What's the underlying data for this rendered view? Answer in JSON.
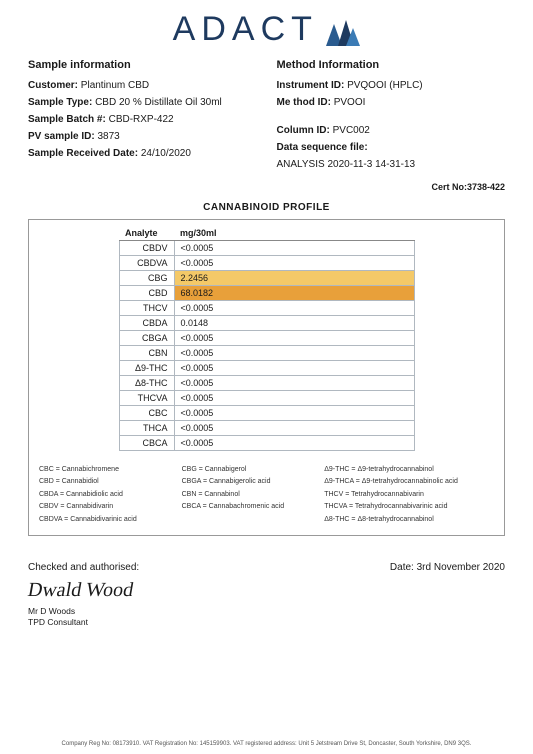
{
  "logo": {
    "text": "ADACT"
  },
  "sample": {
    "heading": "Sample information",
    "customer_label": "Customer:",
    "customer": "Plantinum CBD",
    "type_label": "Sample Type:",
    "type": "CBD 20 % Distillate Oil 30ml",
    "batch_label": "Sample Batch #:",
    "batch": "CBD-RXP-422",
    "pv_label": "PV sample ID:",
    "pv": "3873",
    "received_label": "Sample Received Date:",
    "received": "24/10/2020"
  },
  "method": {
    "heading": "Method Information",
    "instrument_label": "Instrument ID:",
    "instrument": "PVQOOI (HPLC)",
    "method_label": "Me thod ID:",
    "method_id": "PVOOI",
    "column_label": "Column ID:",
    "column": "PVC002",
    "seq_label": "Data sequence file:",
    "seq": "ANALYSIS 2020-11-3  14-31-13"
  },
  "cert_label": "Cert No:",
  "cert": "3738-422",
  "profile_title": "CANNABINOID PROFILE",
  "table": {
    "headers": [
      "Analyte",
      "mg/30ml"
    ],
    "rows": [
      {
        "name": "CBDV",
        "val": "<0.0005",
        "hl": ""
      },
      {
        "name": "CBDVA",
        "val": "<0.0005",
        "hl": ""
      },
      {
        "name": "CBG",
        "val": "2.2456",
        "hl": "hl-yellow"
      },
      {
        "name": "CBD",
        "val": "68.0182",
        "hl": "hl-orange"
      },
      {
        "name": "THCV",
        "val": "<0.0005",
        "hl": ""
      },
      {
        "name": "CBDA",
        "val": "0.0148",
        "hl": ""
      },
      {
        "name": "CBGA",
        "val": "<0.0005",
        "hl": ""
      },
      {
        "name": "CBN",
        "val": "<0.0005",
        "hl": ""
      },
      {
        "name": "Δ9-THC",
        "val": "<0.0005",
        "hl": ""
      },
      {
        "name": "Δ8-THC",
        "val": "<0.0005",
        "hl": ""
      },
      {
        "name": "THCVA",
        "val": "<0.0005",
        "hl": ""
      },
      {
        "name": "CBC",
        "val": "<0.0005",
        "hl": ""
      },
      {
        "name": "THCA",
        "val": "<0.0005",
        "hl": ""
      },
      {
        "name": "CBCA",
        "val": "<0.0005",
        "hl": ""
      }
    ]
  },
  "legend": [
    "CBC = Cannabichromene",
    "CBG = Cannabigerol",
    "Δ9-THC = Δ9-tetrahydrocannabinol",
    "CBD = Cannabidiol",
    "CBGA = Cannabigerolic acid",
    "Δ9-THCA = Δ9-tetrahydrocannabinolic acid",
    "CBDA = Cannabidiolic acid",
    "CBN = Cannabinol",
    "THCV = Tetrahydrocannabivarin",
    "CBDV = Cannabidivarin",
    "CBCA = Cannabachromenic acid",
    "THCVA = Tetrahydrocannabivarinic acid",
    "CBDVA = Cannabidivarinic acid",
    "",
    "Δ8-THC = Δ8-tetrahydrocannabinol"
  ],
  "sig": {
    "checked": "Checked and authorised:",
    "date_label": "Date:",
    "date": "3rd November 2020",
    "signature": "Dwald Wood",
    "name": "Mr D Woods",
    "title": "TPD Consultant"
  },
  "footer": "Company Reg No: 08173910. VAT Registration No: 145159903. VAT registered address: Unit 5 Jetstream Drive St, Doncaster, South Yorkshire, DN9 3QS."
}
